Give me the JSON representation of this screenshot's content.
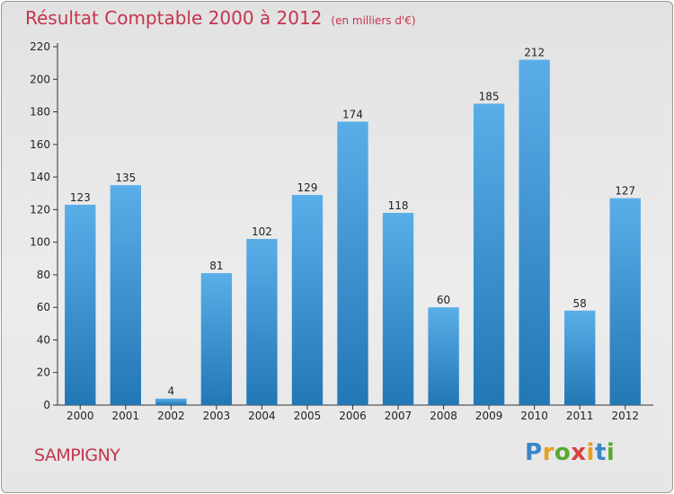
{
  "chart_data": {
    "type": "bar",
    "title": "Résultat Comptable 2000 à 2012",
    "subtitle": "(en milliers d'€)",
    "categories": [
      "2000",
      "2001",
      "2002",
      "2003",
      "2004",
      "2005",
      "2006",
      "2007",
      "2008",
      "2009",
      "2010",
      "2011",
      "2012"
    ],
    "values": [
      123,
      135,
      4,
      81,
      102,
      129,
      174,
      118,
      60,
      185,
      212,
      58,
      127
    ],
    "ylim": [
      0,
      220
    ],
    "yticks": [
      0,
      20,
      40,
      60,
      80,
      100,
      120,
      140,
      160,
      180,
      200,
      220
    ],
    "xlabel": "",
    "ylabel": "",
    "grid": false
  },
  "place_name": "SAMPIGNY",
  "brand": "Proxiti",
  "colors": {
    "title": "#c5344e",
    "bar_top": "#5aaee8",
    "bar_bottom": "#2277b5",
    "axis": "#333333"
  }
}
